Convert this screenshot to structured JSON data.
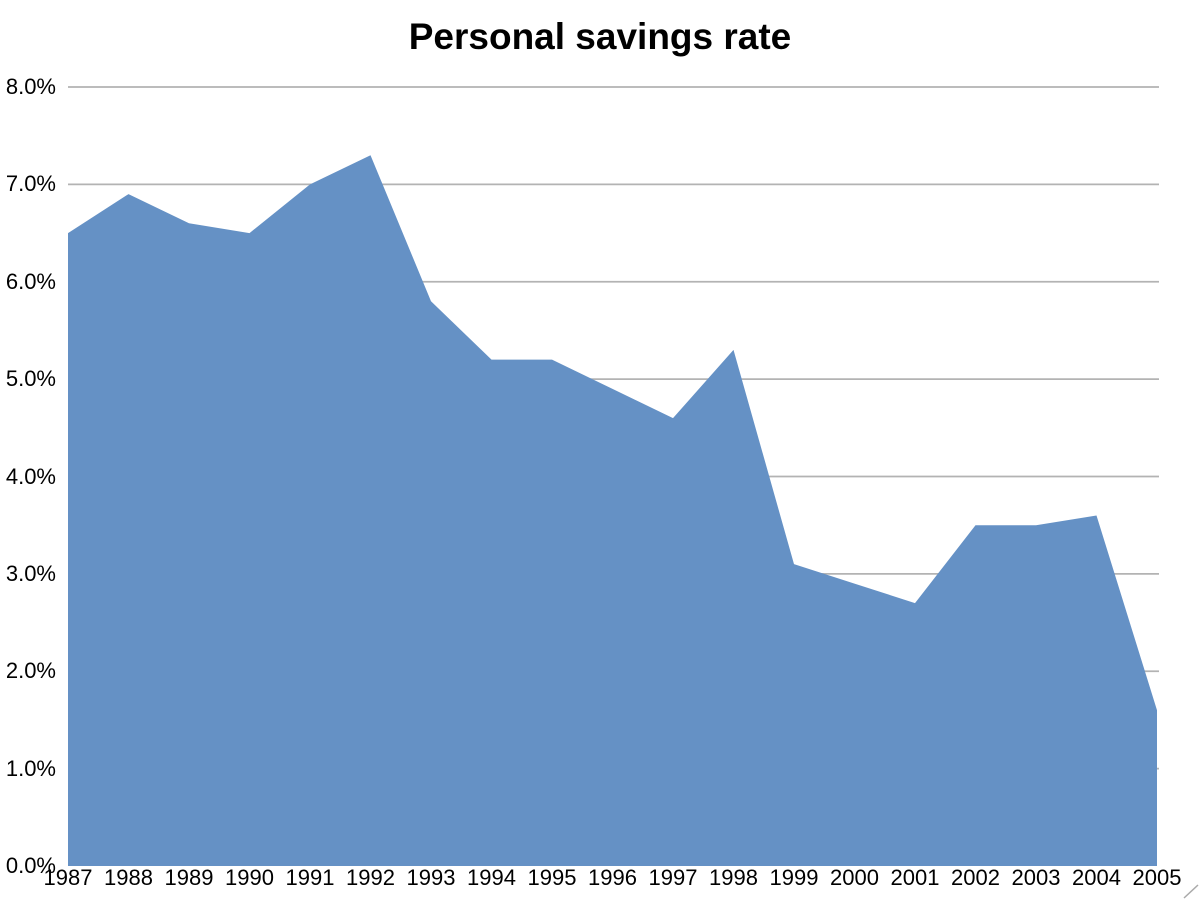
{
  "title": "Personal savings rate",
  "chart_data": {
    "type": "area",
    "title": "Personal savings rate",
    "categories": [
      "1987",
      "1988",
      "1989",
      "1990",
      "1991",
      "1992",
      "1993",
      "1994",
      "1995",
      "1996",
      "1997",
      "1998",
      "1999",
      "2000",
      "2001",
      "2002",
      "2003",
      "2004",
      "2005"
    ],
    "values": [
      6.5,
      6.9,
      6.6,
      6.5,
      7.0,
      7.3,
      5.8,
      5.2,
      5.2,
      4.9,
      4.6,
      5.3,
      3.1,
      2.9,
      2.7,
      3.5,
      3.5,
      3.6,
      1.6
    ],
    "xlabel": "",
    "ylabel": "",
    "ylim": [
      0,
      8
    ],
    "y_tick_labels": [
      "8.0%",
      "7.0%",
      "6.0%",
      "5.0%",
      "4.0%",
      "3.0%",
      "2.0%",
      "1.0%",
      "0.0%"
    ],
    "y_tick_values": [
      8,
      7,
      6,
      5,
      4,
      3,
      2,
      1,
      0
    ],
    "grid": "horizontal",
    "legend": "none",
    "colors": {
      "area_fill": "#6591C5",
      "gridline": "#B3B3B3",
      "text": "#000000",
      "background": "#FFFFFF",
      "corner_mark": "#AAAAAA"
    }
  }
}
